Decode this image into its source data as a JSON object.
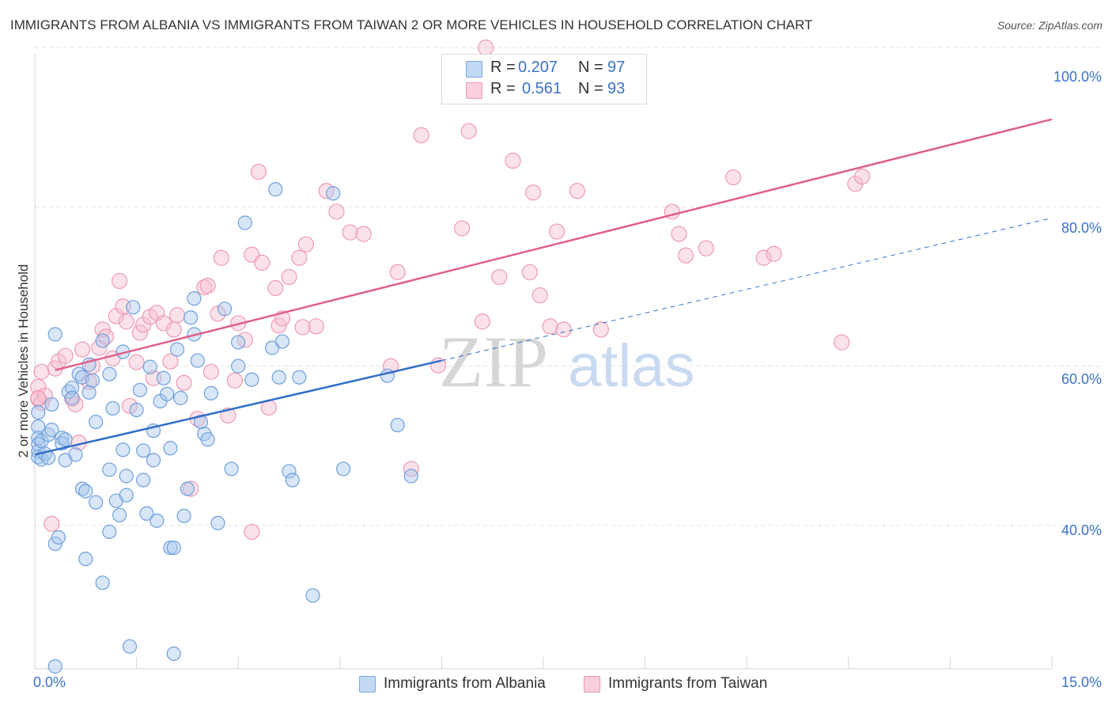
{
  "title": "IMMIGRANTS FROM ALBANIA VS IMMIGRANTS FROM TAIWAN 2 OR MORE VEHICLES IN HOUSEHOLD CORRELATION CHART",
  "source": "Source: ZipAtlas.com",
  "watermark": {
    "zip": "ZIP",
    "atlas": "atlas"
  },
  "legend": {
    "albania": {
      "r_label": "R =",
      "r_value": "0.207",
      "n_label": "N =",
      "n_value": "97"
    },
    "taiwan": {
      "r_label": "R =",
      "r_value": "0.561",
      "n_label": "N =",
      "n_value": "93"
    }
  },
  "bottom_legend": {
    "albania": "Immigrants from Albania",
    "taiwan": "Immigrants from Taiwan"
  },
  "colors": {
    "albania_fill": "#a9c8ee",
    "albania_stroke": "#6fa0dc",
    "albania_line": "#2f6fc9",
    "taiwan_fill": "#f7bfd0",
    "taiwan_stroke": "#ee9ab5",
    "taiwan_line": "#e0608a",
    "tick_text": "#3a73c8",
    "grid": "#e3e3e3"
  },
  "chart_data": {
    "type": "scatter",
    "title": "IMMIGRANTS FROM ALBANIA VS IMMIGRANTS FROM TAIWAN 2 OR MORE VEHICLES IN HOUSEHOLD CORRELATION CHART",
    "xlabel": "",
    "ylabel": "2 or more Vehicles in Household",
    "xlim": [
      0,
      15
    ],
    "ylim": [
      22,
      102
    ],
    "x_tick_labels": [
      "0.0%",
      "15.0%"
    ],
    "y_ticks": [
      40,
      60,
      80,
      100
    ],
    "y_tick_labels": [
      "40.0%",
      "60.0%",
      "80.0%",
      "100.0%"
    ],
    "grid": true,
    "legend_position": "top-center",
    "series": [
      {
        "name": "Immigrants from Albania",
        "trend": {
          "x": [
            0.0,
            6.0
          ],
          "y": [
            48.9,
            60.7
          ]
        },
        "trend_extension": {
          "x": [
            6.0,
            15.0
          ],
          "y": [
            60.7,
            78.6
          ]
        },
        "points": [
          [
            0.05,
            54.2
          ],
          [
            0.05,
            52.4
          ],
          [
            0.05,
            51.0
          ],
          [
            0.05,
            50.2
          ],
          [
            0.05,
            49.3
          ],
          [
            0.05,
            48.6
          ],
          [
            0.1,
            48.3
          ],
          [
            0.1,
            50.6
          ],
          [
            0.15,
            49.0
          ],
          [
            0.2,
            48.5
          ],
          [
            0.2,
            51.4
          ],
          [
            0.25,
            55.2
          ],
          [
            0.25,
            52.0
          ],
          [
            0.3,
            64.0
          ],
          [
            0.3,
            37.7
          ],
          [
            0.35,
            38.5
          ],
          [
            0.4,
            51.0
          ],
          [
            0.4,
            50.3
          ],
          [
            0.45,
            48.2
          ],
          [
            0.45,
            50.8
          ],
          [
            0.5,
            56.8
          ],
          [
            0.55,
            57.3
          ],
          [
            0.55,
            56.0
          ],
          [
            0.6,
            48.9
          ],
          [
            0.65,
            59.0
          ],
          [
            0.7,
            58.6
          ],
          [
            0.7,
            44.6
          ],
          [
            0.75,
            44.3
          ],
          [
            0.75,
            35.8
          ],
          [
            0.8,
            56.7
          ],
          [
            0.8,
            60.2
          ],
          [
            0.85,
            58.2
          ],
          [
            0.9,
            53.0
          ],
          [
            0.9,
            42.9
          ],
          [
            1.0,
            32.8
          ],
          [
            1.0,
            63.2
          ],
          [
            1.1,
            59.0
          ],
          [
            1.1,
            47.0
          ],
          [
            1.1,
            39.2
          ],
          [
            1.15,
            54.7
          ],
          [
            1.2,
            43.1
          ],
          [
            1.25,
            41.3
          ],
          [
            1.3,
            61.8
          ],
          [
            1.3,
            49.5
          ],
          [
            1.35,
            46.2
          ],
          [
            1.35,
            43.8
          ],
          [
            1.4,
            24.8
          ],
          [
            1.45,
            67.4
          ],
          [
            1.5,
            54.5
          ],
          [
            1.55,
            57.0
          ],
          [
            1.6,
            49.4
          ],
          [
            1.6,
            45.7
          ],
          [
            1.65,
            41.5
          ],
          [
            1.7,
            59.9
          ],
          [
            1.75,
            51.9
          ],
          [
            1.75,
            48.2
          ],
          [
            1.8,
            40.6
          ],
          [
            1.85,
            55.6
          ],
          [
            1.9,
            58.5
          ],
          [
            1.95,
            56.5
          ],
          [
            2.0,
            49.7
          ],
          [
            2.0,
            37.2
          ],
          [
            2.05,
            37.2
          ],
          [
            2.05,
            23.9
          ],
          [
            2.1,
            62.1
          ],
          [
            2.15,
            56.0
          ],
          [
            2.2,
            41.2
          ],
          [
            2.25,
            44.6
          ],
          [
            2.35,
            64.0
          ],
          [
            2.4,
            60.7
          ],
          [
            2.45,
            53.0
          ],
          [
            2.5,
            51.5
          ],
          [
            2.55,
            50.8
          ],
          [
            2.6,
            56.6
          ],
          [
            2.7,
            40.3
          ],
          [
            2.8,
            67.2
          ],
          [
            2.9,
            47.1
          ],
          [
            3.0,
            63.0
          ],
          [
            3.0,
            60.0
          ],
          [
            3.1,
            78.0
          ],
          [
            3.2,
            58.3
          ],
          [
            3.5,
            62.3
          ],
          [
            3.55,
            82.2
          ],
          [
            3.6,
            58.6
          ],
          [
            3.65,
            63.1
          ],
          [
            3.75,
            46.8
          ],
          [
            3.8,
            45.7
          ],
          [
            3.9,
            58.6
          ],
          [
            4.1,
            31.2
          ],
          [
            4.4,
            81.7
          ],
          [
            4.55,
            47.1
          ],
          [
            5.2,
            58.8
          ],
          [
            5.35,
            52.6
          ],
          [
            5.55,
            46.2
          ],
          [
            0.3,
            22.3
          ],
          [
            2.3,
            66.1
          ],
          [
            2.35,
            68.5
          ]
        ]
      },
      {
        "name": "Immigrants from Taiwan",
        "trend": {
          "x": [
            0.3,
            15.0
          ],
          "y": [
            59.5,
            91.0
          ]
        },
        "points": [
          [
            0.05,
            57.4
          ],
          [
            0.05,
            55.9
          ],
          [
            0.1,
            55.4
          ],
          [
            0.1,
            59.3
          ],
          [
            0.15,
            56.3
          ],
          [
            0.25,
            40.2
          ],
          [
            0.3,
            59.7
          ],
          [
            0.35,
            60.6
          ],
          [
            0.45,
            61.3
          ],
          [
            0.55,
            55.9
          ],
          [
            0.6,
            55.2
          ],
          [
            0.65,
            50.4
          ],
          [
            0.7,
            62.1
          ],
          [
            0.8,
            58.0
          ],
          [
            0.85,
            60.0
          ],
          [
            0.95,
            62.3
          ],
          [
            1.0,
            64.6
          ],
          [
            1.05,
            63.7
          ],
          [
            1.15,
            61.0
          ],
          [
            1.2,
            66.3
          ],
          [
            1.25,
            70.7
          ],
          [
            1.3,
            67.5
          ],
          [
            1.35,
            65.6
          ],
          [
            1.4,
            55.0
          ],
          [
            1.5,
            60.5
          ],
          [
            1.55,
            64.2
          ],
          [
            1.6,
            65.2
          ],
          [
            1.7,
            66.2
          ],
          [
            1.75,
            58.5
          ],
          [
            1.8,
            66.7
          ],
          [
            1.9,
            65.4
          ],
          [
            2.0,
            60.6
          ],
          [
            2.05,
            64.6
          ],
          [
            2.1,
            66.4
          ],
          [
            2.2,
            57.9
          ],
          [
            2.3,
            44.6
          ],
          [
            2.4,
            53.4
          ],
          [
            2.5,
            69.9
          ],
          [
            2.55,
            70.1
          ],
          [
            2.6,
            59.3
          ],
          [
            2.7,
            66.6
          ],
          [
            2.75,
            73.6
          ],
          [
            2.85,
            53.8
          ],
          [
            2.95,
            58.2
          ],
          [
            3.0,
            65.4
          ],
          [
            3.1,
            63.3
          ],
          [
            3.2,
            74.0
          ],
          [
            3.2,
            39.2
          ],
          [
            3.3,
            84.4
          ],
          [
            3.35,
            73.0
          ],
          [
            3.45,
            54.8
          ],
          [
            3.55,
            69.8
          ],
          [
            3.6,
            65.1
          ],
          [
            3.65,
            66.0
          ],
          [
            3.75,
            71.2
          ],
          [
            3.9,
            73.6
          ],
          [
            3.95,
            64.9
          ],
          [
            4.0,
            75.3
          ],
          [
            4.15,
            65.0
          ],
          [
            4.3,
            82.0
          ],
          [
            4.45,
            79.4
          ],
          [
            4.65,
            76.8
          ],
          [
            4.85,
            76.6
          ],
          [
            5.25,
            60.0
          ],
          [
            5.35,
            71.8
          ],
          [
            5.55,
            47.1
          ],
          [
            5.7,
            89.0
          ],
          [
            5.95,
            60.1
          ],
          [
            6.3,
            77.3
          ],
          [
            6.4,
            89.5
          ],
          [
            6.6,
            65.6
          ],
          [
            6.85,
            71.2
          ],
          [
            7.05,
            85.8
          ],
          [
            7.3,
            71.8
          ],
          [
            7.35,
            81.8
          ],
          [
            7.45,
            68.9
          ],
          [
            7.6,
            65.0
          ],
          [
            7.7,
            76.9
          ],
          [
            7.8,
            64.6
          ],
          [
            8.0,
            82.0
          ],
          [
            8.35,
            64.6
          ],
          [
            9.4,
            79.4
          ],
          [
            9.5,
            76.6
          ],
          [
            9.6,
            73.9
          ],
          [
            9.9,
            74.8
          ],
          [
            10.3,
            83.7
          ],
          [
            10.75,
            73.6
          ],
          [
            10.9,
            74.1
          ],
          [
            11.9,
            63.0
          ],
          [
            12.1,
            82.9
          ],
          [
            12.2,
            83.8
          ],
          [
            0.05,
            56.0
          ],
          [
            6.65,
            100.0
          ]
        ]
      }
    ]
  }
}
